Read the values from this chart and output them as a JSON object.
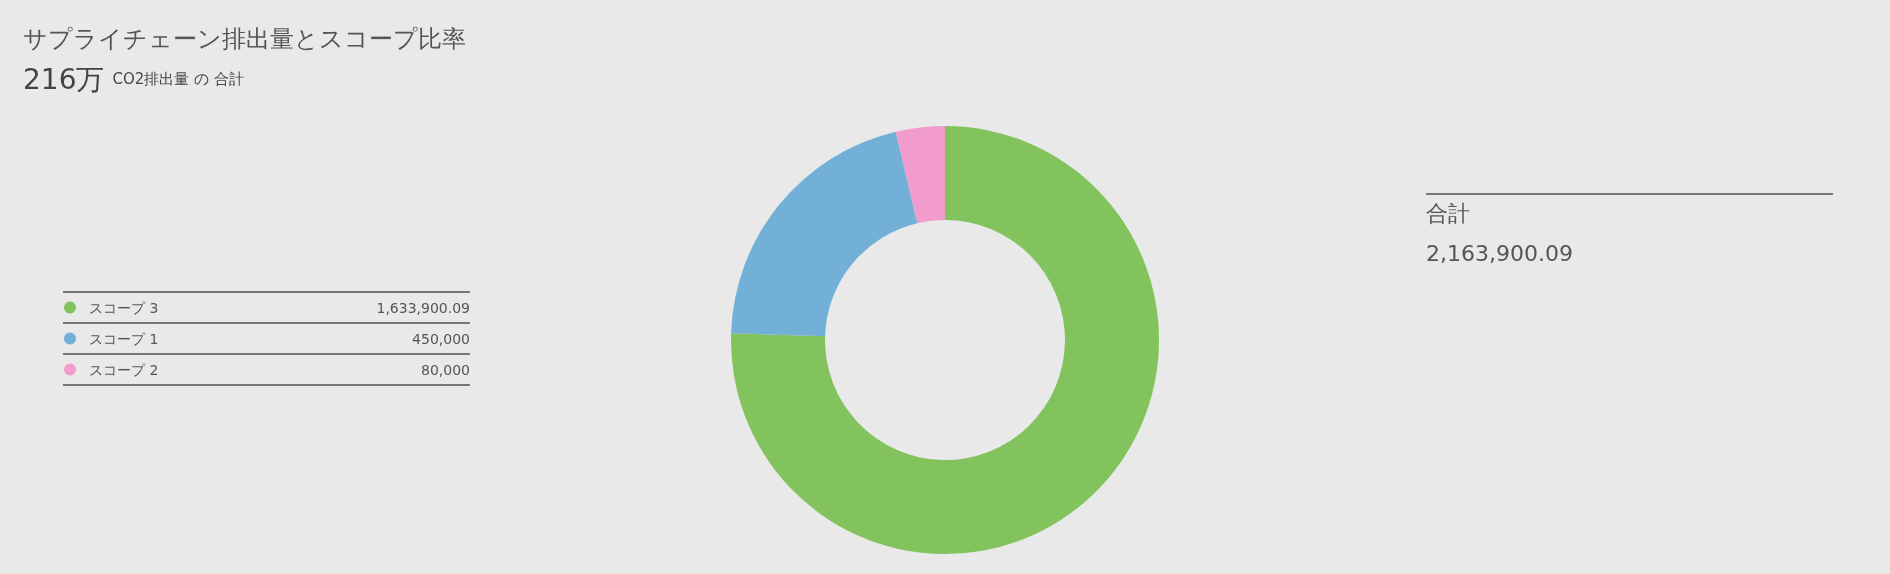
{
  "chart_data": {
    "type": "donut",
    "title": "サプライチェーン排出量とスコープ比率",
    "subtitle": "216万 CO2排出量 の 合計",
    "categories": [
      "スコープ 3",
      "スコープ 1",
      "スコープ 2"
    ],
    "values": [
      1633900.09,
      450000,
      80000
    ],
    "colors": [
      "#82c35e",
      "#73b0d8",
      "#f29bcd"
    ],
    "value_labels": [
      "1,633,900.09",
      "450,000",
      "80,000"
    ],
    "legend": "left",
    "annotations": [
      "合計",
      "2,163,900.09"
    ]
  }
}
